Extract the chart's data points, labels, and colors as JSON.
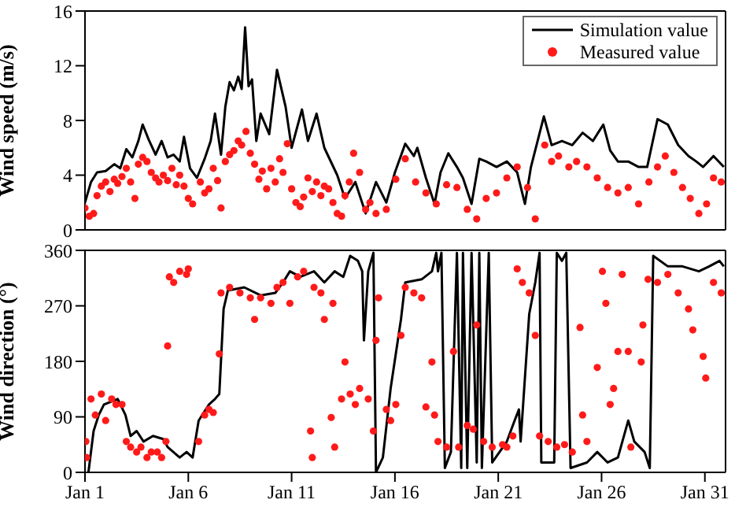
{
  "chart_data": [
    {
      "type": "line",
      "ylabel": "Wind speed (m/s)",
      "xlim": [
        "--01-01",
        "--02-01"
      ],
      "ylim": [
        0,
        16
      ],
      "yticks": [
        0,
        4,
        8,
        12,
        16
      ],
      "xticks": [
        {
          "value": "--01-01",
          "label": null
        },
        {
          "value": "--01-06",
          "label": null
        },
        {
          "value": "--01-11",
          "label": null
        },
        {
          "value": "--01-16",
          "label": null
        },
        {
          "value": "--01-21",
          "label": null
        },
        {
          "value": "--01-26",
          "label": null
        },
        {
          "value": "--01-31",
          "label": null
        }
      ],
      "tick_labels": "y",
      "legend": "top right",
      "series": [
        {
          "name": "Simulation value",
          "color": "#000000",
          "x": [
            "--01-01T00:00",
            "--01-01T07:00",
            "--01-01T14:00",
            "--01-02T00:00",
            "--01-02T10:00",
            "--01-02T17:00",
            "--01-03T00:00",
            "--01-03T07:00",
            "--01-03T14:00",
            "--01-03T19:00",
            "--01-04T02:00",
            "--01-04T10:00",
            "--01-04T17:00",
            "--01-05T00:00",
            "--01-05T07:00",
            "--01-05T14:00",
            "--01-05T19:00",
            "--01-06T02:00",
            "--01-06T10:00",
            "--01-06T19:00",
            "--01-07T02:00",
            "--01-07T07:00",
            "--01-07T14:00",
            "--01-07T19:00",
            "--01-08T00:00",
            "--01-08T05:00",
            "--01-08T10:00",
            "--01-08T14:00",
            "--01-08T18:00",
            "--01-08T22:00",
            "--01-09T02:00",
            "--01-09T07:00",
            "--01-09T12:00",
            "--01-09T22:00",
            "--01-10T07:00",
            "--01-10T17:00",
            "--01-11T00:00",
            "--01-11T12:00",
            "--01-11T19:00",
            "--01-12T05:00",
            "--01-12T14:00",
            "--01-13T05:00",
            "--01-13T14:00",
            "--01-14T02:00",
            "--01-14T14:00",
            "--01-15T02:00",
            "--01-15T14:00",
            "--01-16T00:00",
            "--01-16T12:00",
            "--01-16T22:00",
            "--01-17T02:00",
            "--01-17T12:00",
            "--01-17T22:00",
            "--01-18T05:00",
            "--01-18T14:00",
            "--01-19T00:00",
            "--01-19T07:00",
            "--01-19T17:00",
            "--01-20T02:00",
            "--01-20T10:00",
            "--01-20T22:00",
            "--01-21T10:00",
            "--01-21T22:00",
            "--01-22T07:00",
            "--01-22T14:00",
            "--01-23T05:00",
            "--01-23T14:00",
            "--01-24T02:00",
            "--01-24T14:00",
            "--01-25T02:00",
            "--01-25T14:00",
            "--01-26T02:00",
            "--01-26T10:00",
            "--01-26T19:00",
            "--01-27T07:00",
            "--01-27T19:00",
            "--01-28T05:00",
            "--01-28T17:00",
            "--01-29T05:00",
            "--01-29T17:00",
            "--01-30T05:00",
            "--01-30T14:00",
            "--01-30T22:00",
            "--01-31T10:00",
            "--01-31T22:00"
          ],
          "values": [
            2,
            3.5,
            4.2,
            4.3,
            4.8,
            4.5,
            5.9,
            5.3,
            6.5,
            7.7,
            6.6,
            5.5,
            6.5,
            5.3,
            5.5,
            5,
            6.8,
            4.5,
            3.8,
            5.2,
            6.5,
            8.5,
            5.5,
            9,
            10.8,
            10.2,
            11.2,
            10.3,
            14.8,
            10.5,
            11,
            6.5,
            8.5,
            7,
            11.7,
            9,
            6,
            8.8,
            6.5,
            8.5,
            6,
            4,
            2.3,
            3.5,
            1.2,
            3.5,
            2,
            4.2,
            6.3,
            5.4,
            6,
            3.8,
            1.9,
            4.2,
            5.6,
            4.6,
            3.8,
            1.9,
            5.2,
            5,
            4.6,
            5,
            4.2,
            1.9,
            4.6,
            8.3,
            6.2,
            6.5,
            6.2,
            7.1,
            6.5,
            7.7,
            5.8,
            5,
            5,
            4.6,
            4.6,
            8.1,
            7.7,
            6.2,
            5.4,
            5,
            4.6,
            5.4,
            4.6
          ]
        },
        {
          "name": "Measured value",
          "type": "scatter",
          "color": "#ff1a1a",
          "x": [
            "--01-01T00:00",
            "--01-01T05:00",
            "--01-01T10:00",
            "--01-01T14:00",
            "--01-01T19:00",
            "--01-02T00:00",
            "--01-02T05:00",
            "--01-02T10:00",
            "--01-02T14:00",
            "--01-02T19:00",
            "--01-03T00:00",
            "--01-03T05:00",
            "--01-03T10:00",
            "--01-03T14:00",
            "--01-03T19:00",
            "--01-04T00:00",
            "--01-04T05:00",
            "--01-04T10:00",
            "--01-04T14:00",
            "--01-04T19:00",
            "--01-05T00:00",
            "--01-05T05:00",
            "--01-05T10:00",
            "--01-05T14:00",
            "--01-05T19:00",
            "--01-06T00:00",
            "--01-06T05:00",
            "--01-06T14:00",
            "--01-06T19:00",
            "--01-07T00:00",
            "--01-07T05:00",
            "--01-07T10:00",
            "--01-07T14:00",
            "--01-07T19:00",
            "--01-08T00:00",
            "--01-08T05:00",
            "--01-08T10:00",
            "--01-08T14:00",
            "--01-08T19:00",
            "--01-09T00:00",
            "--01-09T05:00",
            "--01-09T10:00",
            "--01-09T14:00",
            "--01-09T19:00",
            "--01-10T00:00",
            "--01-10T05:00",
            "--01-10T10:00",
            "--01-10T14:00",
            "--01-10T19:00",
            "--01-11T00:00",
            "--01-11T05:00",
            "--01-11T10:00",
            "--01-11T14:00",
            "--01-11T19:00",
            "--01-12T00:00",
            "--01-12T05:00",
            "--01-12T10:00",
            "--01-12T14:00",
            "--01-12T19:00",
            "--01-13T00:00",
            "--01-13T05:00",
            "--01-13T10:00",
            "--01-13T14:00",
            "--01-13T19:00",
            "--01-14T00:00",
            "--01-14T07:00",
            "--01-14T14:00",
            "--01-14T19:00",
            "--01-15T02:00",
            "--01-15T14:00",
            "--01-16T01:00",
            "--01-16T12:00",
            "--01-17T00:00",
            "--01-17T12:00",
            "--01-18T00:00",
            "--01-18T12:00",
            "--01-19T00:00",
            "--01-19T12:00",
            "--01-19T23:00",
            "--01-20T10:00",
            "--01-20T22:00",
            "--01-21T10:00",
            "--01-21T22:00",
            "--01-22T10:00",
            "--01-22T19:00",
            "--01-23T06:00",
            "--01-23T14:00",
            "--01-23T22:00",
            "--01-24T10:00",
            "--01-24T19:00",
            "--01-25T07:00",
            "--01-25T19:00",
            "--01-26T07:00",
            "--01-26T19:00",
            "--01-27T07:00",
            "--01-27T19:00",
            "--01-28T07:00",
            "--01-28T17:00",
            "--01-29T02:00",
            "--01-29T12:00",
            "--01-29T22:00",
            "--01-30T07:00",
            "--01-30T17:00",
            "--01-31T02:00",
            "--01-31T10:00",
            "--01-31T19:00"
          ],
          "values": [
            1.6,
            1,
            1.2,
            2.5,
            3.2,
            3.5,
            2.8,
            3.7,
            3.4,
            3.9,
            4.5,
            3.5,
            2.3,
            4.8,
            5.3,
            5,
            4.2,
            3.8,
            3.5,
            4,
            3.6,
            4.5,
            3.3,
            4,
            3.2,
            2.3,
            1.9,
            3.5,
            2.7,
            3,
            4.5,
            3.6,
            1.6,
            5,
            5.5,
            5.8,
            6.5,
            6.2,
            7.2,
            5.6,
            4.8,
            3.7,
            4.3,
            3,
            4.5,
            3.5,
            5.2,
            4.2,
            6.3,
            3,
            2,
            1.7,
            2.4,
            3.8,
            2.8,
            3.5,
            2.5,
            3.2,
            3,
            2,
            1.2,
            1,
            2.5,
            3.5,
            5.6,
            4.2,
            1.5,
            2,
            1.2,
            1.5,
            3.7,
            5.2,
            3.5,
            2.7,
            1.9,
            3.3,
            3.1,
            1.5,
            0.8,
            2.3,
            2.7,
            3.8,
            4.6,
            3.1,
            0.8,
            6.2,
            5,
            5.4,
            4.6,
            5,
            4.6,
            3.8,
            3.1,
            2.7,
            3.1,
            1.9,
            3.5,
            4.6,
            5.4,
            4.2,
            3.1,
            2.3,
            1.2,
            1.9,
            3.8,
            3.5
          ]
        }
      ]
    },
    {
      "type": "line",
      "ylabel": "Wind direction (°)",
      "xlim": [
        "--01-01",
        "--02-01"
      ],
      "ylim": [
        0,
        360
      ],
      "yticks": [
        0,
        90,
        180,
        270,
        360
      ],
      "xticks": [
        {
          "value": "--01-01",
          "label": "Jan 1"
        },
        {
          "value": "--01-06",
          "label": "Jan 6"
        },
        {
          "value": "--01-11",
          "label": "Jan 11"
        },
        {
          "value": "--01-16",
          "label": "Jan 16"
        },
        {
          "value": "--01-21",
          "label": "Jan 21"
        },
        {
          "value": "--01-26",
          "label": "Jan 26"
        },
        {
          "value": "--01-31",
          "label": "Jan 31"
        }
      ],
      "series": [
        {
          "color": "#000000",
          "x": [
            "--01-01T04:00",
            "--01-01T10:00",
            "--01-01T16:00",
            "--01-01T22:00",
            "--01-02T14:00",
            "--01-02T23:00",
            "--01-03T05:00",
            "--01-03T12:00",
            "--01-03T20:00",
            "--01-04T07:00",
            "--01-04T19:00",
            "--01-05T00:00",
            "--01-05T14:00",
            "--01-05T22:00",
            "--01-06T05:00",
            "--01-06T12:00",
            "--01-07T00:00",
            "--01-07T07:00",
            "--01-07T12:00",
            "--01-07T17:00",
            "--01-07T22:00",
            "--01-08T17:00",
            "--01-09T12:00",
            "--01-10T05:00",
            "--01-10T14:00",
            "--01-10T22:00",
            "--01-11T10:00",
            "--01-12T02:00",
            "--01-12T14:00",
            "--01-13T02:00",
            "--01-13T12:00",
            "--01-13T20:00",
            "--01-14T05:00",
            "--01-14T10:00",
            "--01-14T12:00",
            "--01-14T17:00",
            "--01-14T23:00",
            "--01-15T02:00",
            "--01-15T10:00",
            "--01-15T19:00",
            "--01-16T07:00",
            "--01-16T12:00",
            "--01-17T07:00",
            "--01-17T19:00",
            "--01-18T00:00",
            "--01-18T02:00",
            "--01-18T06:00",
            "--01-18T10:00",
            "--01-18T17:00",
            "--01-19T00:00",
            "--01-19T05:00",
            "--01-19T07:00",
            "--01-19T12:00",
            "--01-19T17:00",
            "--01-19T23:00",
            "--01-20T02:00",
            "--01-20T05:00",
            "--01-20T13:00",
            "--01-20T17:00",
            "--01-21T10:00",
            "--01-21T19:00",
            "--01-22T00:00",
            "--01-22T02:00",
            "--01-22T12:00",
            "--01-22T19:00",
            "--01-23T00:00",
            "--01-23T02:00",
            "--01-23T17:00",
            "--01-23T20:00",
            "--01-24T02:00",
            "--01-24T07:00",
            "--01-24T12:00",
            "--01-25T07:00",
            "--01-25T19:00",
            "--01-26T07:00",
            "--01-26T19:00",
            "--01-27T07:00",
            "--01-27T14:00",
            "--01-28T02:00",
            "--01-28T08:00",
            "--01-28T12:00",
            "--01-29T05:00",
            "--01-29T22:00",
            "--01-30T17:00",
            "--01-31T05:00",
            "--01-31T17:00",
            "--01-31T22:00"
          ],
          "values": [
            0,
            67,
            93,
            110,
            119,
            93,
            59,
            67,
            50,
            59,
            54,
            41,
            24,
            33,
            24,
            84,
            110,
            119,
            127,
            265,
            295,
            300,
            287,
            291,
            308,
            326,
            317,
            326,
            308,
            326,
            317,
            351,
            343,
            326,
            214,
            326,
            356,
            0,
            24,
            136,
            248,
            308,
            313,
            326,
            356,
            326,
            356,
            7,
            33,
            356,
            7,
            356,
            7,
            356,
            16,
            356,
            7,
            356,
            16,
            50,
            84,
            102,
            50,
            257,
            308,
            356,
            16,
            16,
            356,
            343,
            356,
            7,
            16,
            33,
            16,
            24,
            84,
            50,
            33,
            7,
            351,
            334,
            334,
            326,
            334,
            343,
            334
          ]
        },
        {
          "type": "scatter",
          "color": "#ff1a1a",
          "x": [
            "--01-01T01:00",
            "--01-01T02:00",
            "--01-01T07:00",
            "--01-01T12:00",
            "--01-01T19:00",
            "--01-02T00:00",
            "--01-02T07:00",
            "--01-02T12:00",
            "--01-02T19:00",
            "--01-03T00:00",
            "--01-03T05:00",
            "--01-03T12:00",
            "--01-03T17:00",
            "--01-04T00:00",
            "--01-04T05:00",
            "--01-04T12:00",
            "--01-04T17:00",
            "--01-04T22:00",
            "--01-05T00:00",
            "--01-05T02:00",
            "--01-05T07:00",
            "--01-05T14:00",
            "--01-05T22:00",
            "--01-06T00:00",
            "--01-06T12:00",
            "--01-06T19:00",
            "--01-07T00:00",
            "--01-07T05:00",
            "--01-07T12:00",
            "--01-07T14:00",
            "--01-08T00:00",
            "--01-08T12:00",
            "--01-09T00:00",
            "--01-09T05:00",
            "--01-09T12:00",
            "--01-10T00:00",
            "--01-10T07:00",
            "--01-10T14:00",
            "--01-10T22:00",
            "--01-11T07:00",
            "--01-11T14:00",
            "--01-11T22:00",
            "--01-12T00:00",
            "--01-12T02:00",
            "--01-12T10:00",
            "--01-12T14:00",
            "--01-12T22:00",
            "--01-13T00:00",
            "--01-13T02:00",
            "--01-13T10:00",
            "--01-13T14:00",
            "--01-13T20:00",
            "--01-14T02:00",
            "--01-14T07:00",
            "--01-14T17:00",
            "--01-14T23:00",
            "--01-15T02:00",
            "--01-15T05:00",
            "--01-15T14:00",
            "--01-15T19:00",
            "--01-16T01:00",
            "--01-16T07:00",
            "--01-16T12:00",
            "--01-16T22:00",
            "--01-17T07:00",
            "--01-17T12:00",
            "--01-17T19:00",
            "--01-17T22:00",
            "--01-18T02:00",
            "--01-18T12:00",
            "--01-18T20:00",
            "--01-19T02:00",
            "--01-19T12:00",
            "--01-19T19:00",
            "--01-19T23:00",
            "--01-20T07:00",
            "--01-20T17:00",
            "--01-21T05:00",
            "--01-21T10:00",
            "--01-21T17:00",
            "--01-21T22:00",
            "--01-22T04:00",
            "--01-22T12:00",
            "--01-22T19:00",
            "--01-23T00:00",
            "--01-23T10:00",
            "--01-23T20:00",
            "--01-24T05:00",
            "--01-24T14:00",
            "--01-24T23:00",
            "--01-25T02:00",
            "--01-25T07:00",
            "--01-25T19:00",
            "--01-26T01:00",
            "--01-26T05:00",
            "--01-26T10:00",
            "--01-26T14:00",
            "--01-26T19:00",
            "--01-27T00:00",
            "--01-27T07:00",
            "--01-27T10:00",
            "--01-27T22:00",
            "--01-28T00:00",
            "--01-28T06:00",
            "--01-28T17:00",
            "--01-29T05:00",
            "--01-29T17:00",
            "--01-30T05:00",
            "--01-30T10:00",
            "--01-30T22:00",
            "--01-31T01:00",
            "--01-31T10:00",
            "--01-31T19:00"
          ],
          "values": [
            50,
            24,
            119,
            93,
            127,
            84,
            119,
            110,
            110,
            50,
            41,
            33,
            41,
            24,
            33,
            33,
            24,
            50,
            205,
            317,
            308,
            326,
            321,
            330,
            50,
            93,
            102,
            97,
            192,
            291,
            300,
            291,
            283,
            248,
            283,
            274,
            300,
            308,
            274,
            317,
            326,
            67,
            24,
            300,
            291,
            248,
            89,
            274,
            41,
            119,
            179,
            127,
            110,
            136,
            119,
            67,
            214,
            283,
            102,
            84,
            110,
            222,
            300,
            291,
            283,
            106,
            179,
            93,
            50,
            41,
            196,
            41,
            76,
            70,
            239,
            50,
            41,
            45,
            41,
            59,
            330,
            308,
            291,
            222,
            59,
            50,
            41,
            45,
            33,
            235,
            93,
            50,
            170,
            326,
            274,
            110,
            136,
            196,
            321,
            196,
            41,
            179,
            239,
            313,
            308,
            321,
            291,
            265,
            231,
            188,
            153,
            308,
            291
          ]
        }
      ]
    }
  ]
}
